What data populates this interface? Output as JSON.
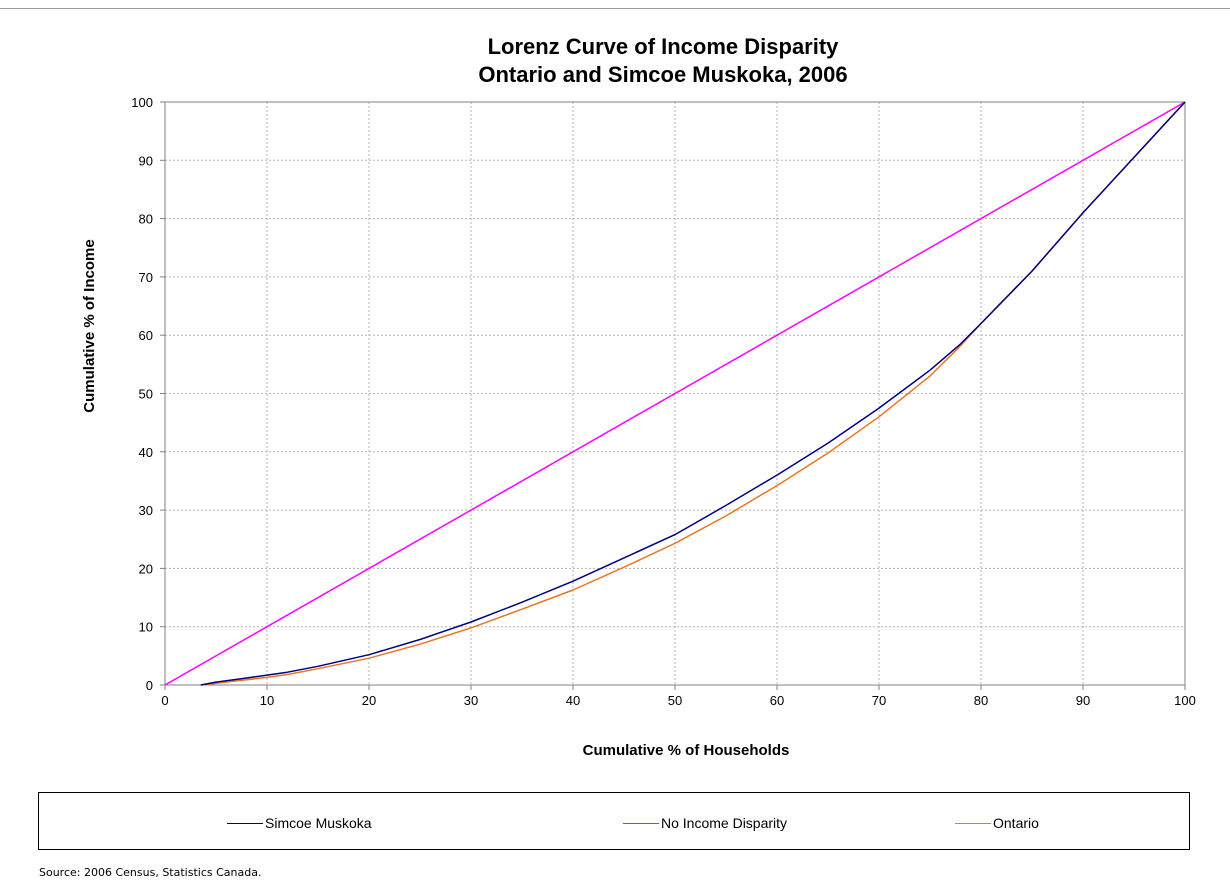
{
  "chart_data": {
    "type": "line",
    "title": [
      "Lorenz Curve of Income Disparity",
      "Ontario and Simcoe Muskoka, 2006"
    ],
    "xlabel": "Cumulative % of Households",
    "ylabel": "Cumulative % of Income",
    "xlim": [
      0,
      100
    ],
    "ylim": [
      0,
      100
    ],
    "x_ticks": [
      0,
      10,
      20,
      30,
      40,
      50,
      60,
      70,
      80,
      90,
      100
    ],
    "y_ticks": [
      0,
      10,
      20,
      30,
      40,
      50,
      60,
      70,
      80,
      90,
      100
    ],
    "grid": true,
    "legend_position": "bottom",
    "series": [
      {
        "name": "Simcoe Muskoka",
        "color": "#000080",
        "points": [
          [
            3.5,
            0
          ],
          [
            5,
            0.5
          ],
          [
            8,
            1.2
          ],
          [
            10,
            1.7
          ],
          [
            12,
            2.2
          ],
          [
            15,
            3.2
          ],
          [
            20,
            5.2
          ],
          [
            25,
            7.8
          ],
          [
            30,
            10.8
          ],
          [
            35,
            14.2
          ],
          [
            40,
            17.8
          ],
          [
            45,
            21.8
          ],
          [
            50,
            25.8
          ],
          [
            55,
            30.8
          ],
          [
            60,
            36.0
          ],
          [
            65,
            41.5
          ],
          [
            70,
            47.5
          ],
          [
            75,
            54.0
          ],
          [
            78,
            58.5
          ],
          [
            80,
            62
          ],
          [
            85,
            71
          ],
          [
            90,
            81
          ],
          [
            95,
            90.5
          ],
          [
            100,
            100
          ]
        ]
      },
      {
        "name": "No Income Disparity",
        "color": "#FF00FF",
        "points": [
          [
            0,
            0
          ],
          [
            100,
            100
          ]
        ]
      },
      {
        "name": "Ontario",
        "color": "#E87722",
        "points": [
          [
            4,
            0
          ],
          [
            5,
            0.3
          ],
          [
            8,
            0.9
          ],
          [
            10,
            1.3
          ],
          [
            12,
            1.8
          ],
          [
            15,
            2.8
          ],
          [
            20,
            4.6
          ],
          [
            25,
            7.0
          ],
          [
            30,
            9.8
          ],
          [
            35,
            13.0
          ],
          [
            40,
            16.3
          ],
          [
            45,
            20.2
          ],
          [
            50,
            24.3
          ],
          [
            55,
            29.0
          ],
          [
            60,
            34.2
          ],
          [
            65,
            39.8
          ],
          [
            70,
            46.0
          ],
          [
            75,
            53.0
          ],
          [
            78,
            58.2
          ],
          [
            80,
            62
          ],
          [
            85,
            71
          ],
          [
            90,
            81
          ],
          [
            95,
            90.5
          ],
          [
            100,
            100
          ]
        ]
      }
    ]
  },
  "legend": {
    "items": [
      {
        "label": "Simcoe Muskoka",
        "color": "#000080"
      },
      {
        "label": "No Income Disparity",
        "color": "#FF00FF"
      },
      {
        "label": "Ontario",
        "color": "#E87722"
      }
    ]
  },
  "source": "Source:  2006 Census, Statistics Canada."
}
